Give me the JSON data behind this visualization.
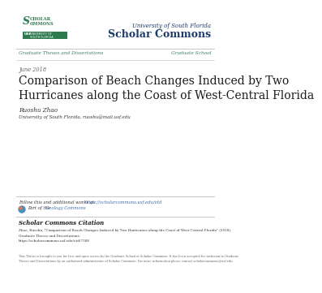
{
  "bg_color": "#ffffff",
  "usf_label": "University of South Florida",
  "scholar_commons_label": "Scholar Commons",
  "grad_theses": "Graduate Theses and Dissertations",
  "grad_school": "Graduate School",
  "date": "June 2018",
  "title_line1": "Comparison of Beach Changes Induced by Two",
  "title_line2": "Hurricanes along the Coast of West-Central Florida",
  "author": "Ruoshu Zhao",
  "affil": "University of South Florida, ruoshu@mail.usf.edu",
  "follow_text": "Follow this and additional works at: ",
  "follow_link": "https://scholarcommons.usf.edu/etd",
  "part_of": "Part of the ",
  "geo_commons": "Geology Commons",
  "citation_header": "Scholar Commons Citation",
  "citation_line1": "Zhao, Ruoshu, \"Comparison of Beach Changes Induced by Two Hurricanes along the Coast of West-Central Florida\" (2018).",
  "citation_line2": "Graduate Theses and Dissertations.",
  "citation_line3": "https://scholarcommons.usf.edu/etd/7388",
  "footer_note1": "This Thesis is brought to you for free and open access by the Graduate School at Scholar Commons. It has been accepted for inclusion in Graduate",
  "footer_note2": "Theses and Dissertations by an authorized administrator of Scholar Commons. For more information please contact scholarcommons@usf.edu.",
  "green_color": "#2d7a4f",
  "navy_color": "#1b3a6b",
  "teal_color": "#3a7a6a",
  "link_color": "#3a6aaa",
  "text_dark": "#333333",
  "text_gray": "#666666",
  "line_color": "#bbbbbb",
  "logo_green": "#2d7a4f",
  "logo_box_color": "#2d7a4f"
}
